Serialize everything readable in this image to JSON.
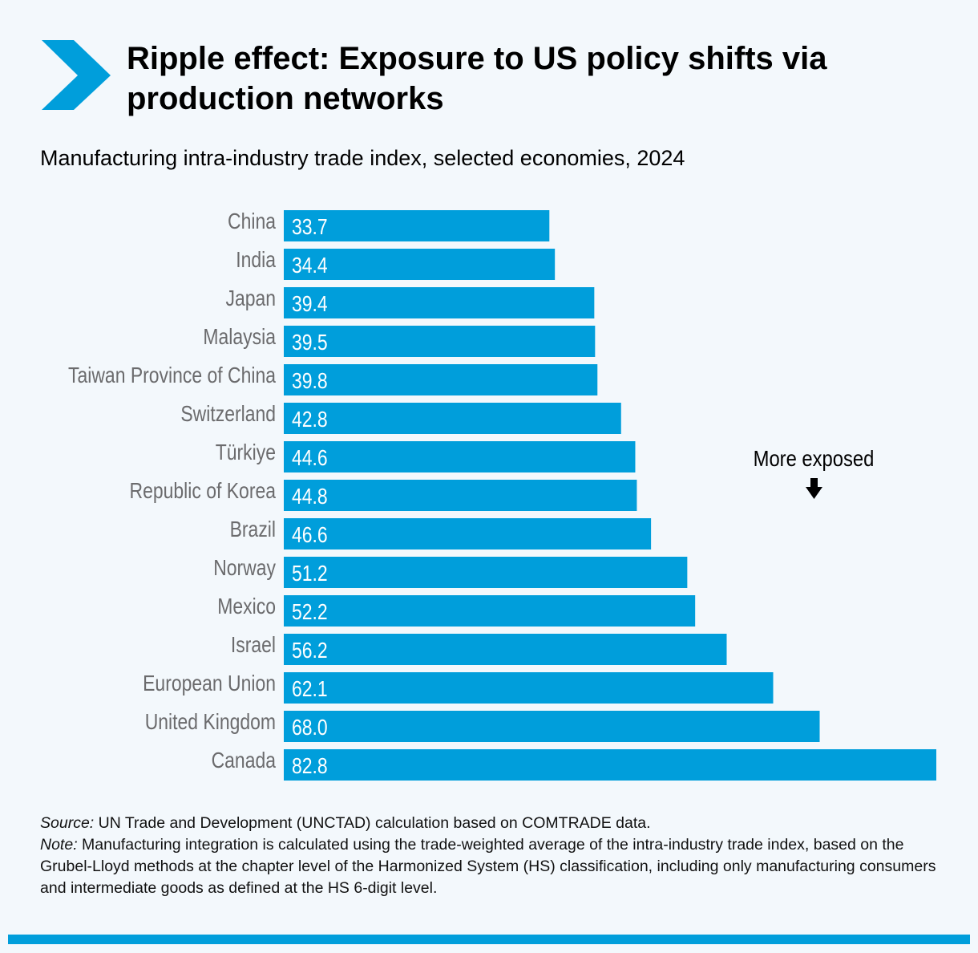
{
  "header": {
    "title": "Ripple effect: Exposure to US policy shifts via production networks",
    "subtitle": "Manufacturing intra-industry trade index, selected economies, 2024",
    "icon": "chevron-right-icon"
  },
  "colors": {
    "bar": "#009edb",
    "background": "#f3f8fc",
    "label": "#6b6b6d"
  },
  "chart_data": {
    "type": "bar",
    "orientation": "horizontal",
    "title": "Manufacturing intra-industry trade index, selected economies, 2024",
    "categories": [
      "China",
      "India",
      "Japan",
      "Malaysia",
      "Taiwan Province of China",
      "Switzerland",
      "Türkiye",
      "Republic of Korea",
      "Brazil",
      "Norway",
      "Mexico",
      "Israel",
      "European Union",
      "United Kingdom",
      "Canada"
    ],
    "values": [
      33.7,
      34.4,
      39.4,
      39.5,
      39.8,
      42.8,
      44.6,
      44.8,
      46.6,
      51.2,
      52.2,
      56.2,
      62.1,
      68.0,
      82.8
    ],
    "data_labels": [
      "33.7",
      "34.4",
      "39.4",
      "39.5",
      "39.8",
      "42.8",
      "44.6",
      "44.8",
      "46.6",
      "51.2",
      "52.2",
      "56.2",
      "62.1",
      "68.0",
      "82.8"
    ],
    "xlim": [
      0,
      82.8
    ],
    "grid": false,
    "annotation": {
      "text": "More exposed",
      "icon": "arrow-down-icon"
    }
  },
  "footer": {
    "source_label": "Source:",
    "source_text": " UN Trade and Development (UNCTAD) calculation based on COMTRADE data.",
    "note_label": "Note:",
    "note_text": " Manufacturing integration is calculated using the trade-weighted average of the intra-industry trade index, based on the Grubel-Lloyd methods at the chapter level of the Harmonized System (HS) classification, including only manufacturing consumers and intermediate goods as defined at the HS 6-digit level."
  }
}
